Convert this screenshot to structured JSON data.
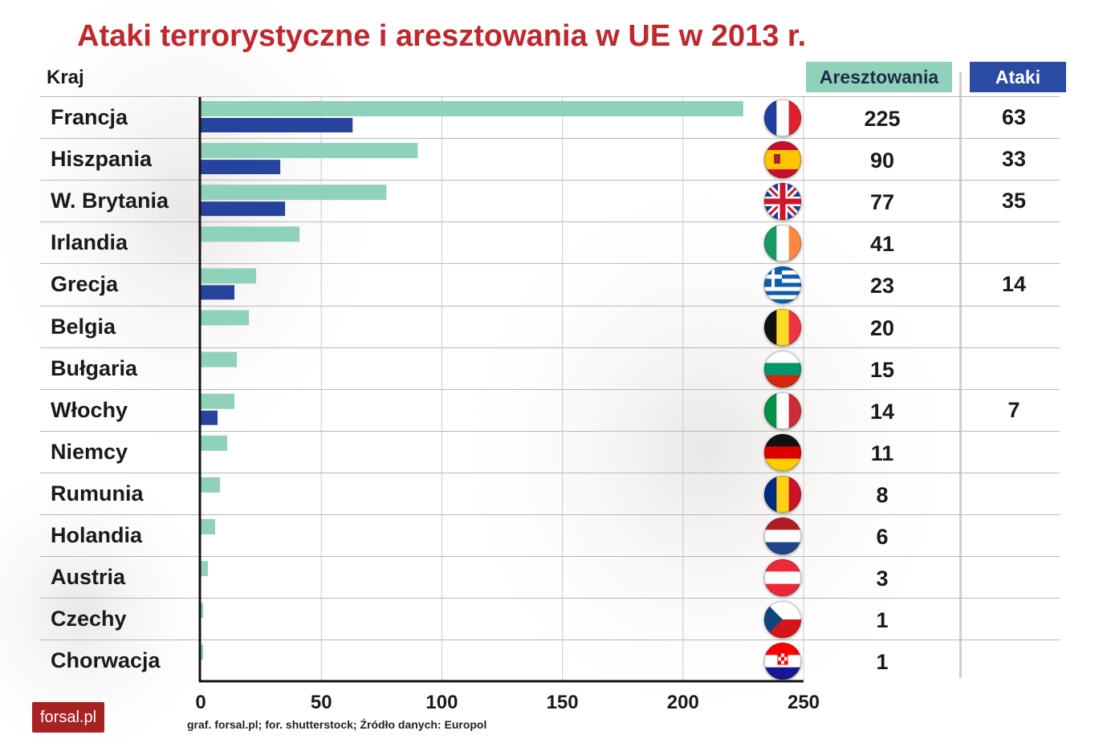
{
  "title": "Ataki terrorystyczne i aresztowania w UE w 2013 r.",
  "column_headers": {
    "country": "Kraj",
    "arrests": "Aresztowania",
    "attacks": "Ataki"
  },
  "colors": {
    "arrests": "#8fd1b9",
    "attacks": "#26449c",
    "title": "#c1272d"
  },
  "source": "graf. forsal.pl; for. shutterstock;  Źródło danych: Europol",
  "logo": "forsal.pl",
  "chart_data": {
    "type": "bar",
    "orientation": "horizontal",
    "categories": [
      "Francja",
      "Hiszpania",
      "W. Brytania",
      "Irlandia",
      "Grecja",
      "Belgia",
      "Bułgaria",
      "Włochy",
      "Niemcy",
      "Rumunia",
      "Holandia",
      "Austria",
      "Czechy",
      "Chorwacja"
    ],
    "series": [
      {
        "name": "Aresztowania",
        "values": [
          225,
          90,
          77,
          41,
          23,
          20,
          15,
          14,
          11,
          8,
          6,
          3,
          1,
          1
        ]
      },
      {
        "name": "Ataki",
        "values": [
          63,
          33,
          35,
          null,
          14,
          null,
          null,
          7,
          null,
          null,
          null,
          null,
          null,
          null
        ]
      }
    ],
    "xlim": [
      0,
      250
    ],
    "xticks": [
      "0",
      "50",
      "100",
      "150",
      "200",
      "250"
    ],
    "grid": true,
    "title": "Ataki terrorystyczne i aresztowania w UE w 2013 r."
  },
  "table": {
    "arrests_labels": [
      "225",
      "90",
      "77",
      "41",
      "23",
      "20",
      "15",
      "14",
      "11",
      "8",
      "6",
      "3",
      "1",
      "1"
    ],
    "attacks_labels": [
      "63",
      "33",
      "35",
      "",
      "14",
      "",
      "",
      "7",
      "",
      "",
      "",
      "",
      "",
      ""
    ]
  },
  "flags": [
    "fr",
    "es",
    "gb",
    "ie",
    "gr",
    "be",
    "bg",
    "it",
    "de",
    "ro",
    "nl",
    "at",
    "cz",
    "hr"
  ]
}
